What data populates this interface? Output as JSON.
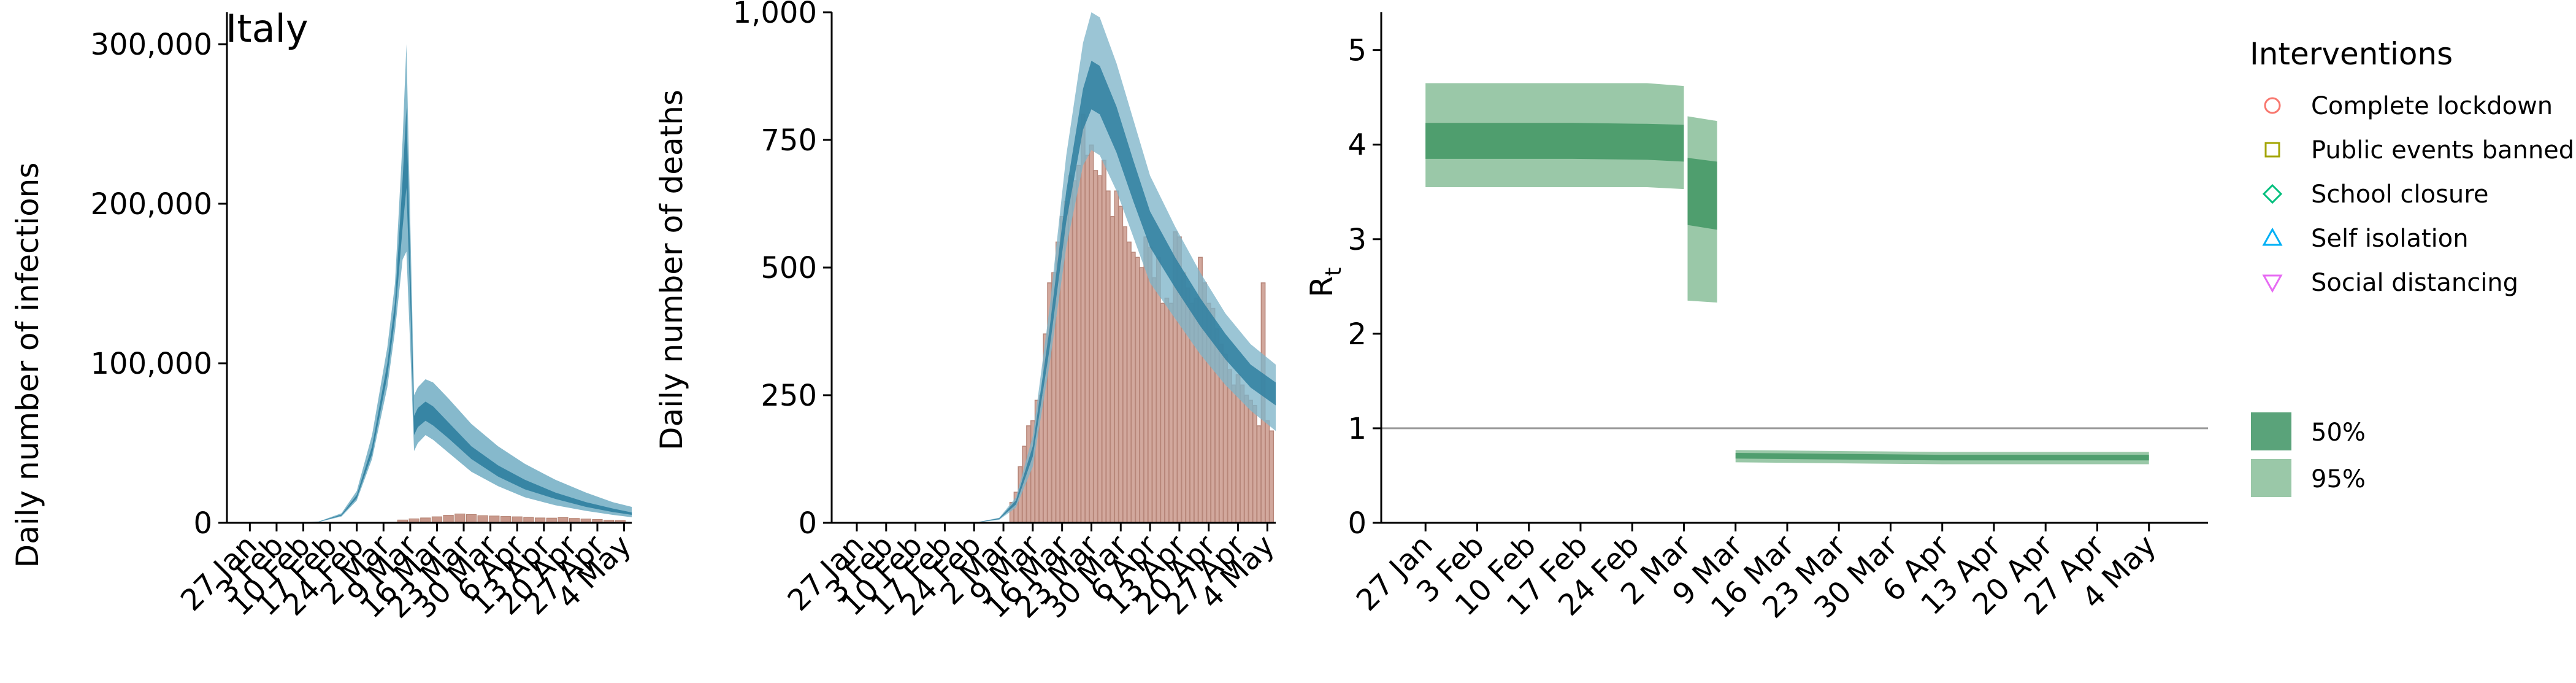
{
  "chart_data": [
    {
      "type": "area",
      "title": "Italy",
      "xlabel": "",
      "ylabel": "Daily number of infections",
      "ylim": [
        0,
        320000
      ],
      "yticks": [
        0,
        100000,
        200000,
        300000
      ],
      "ytick_labels": [
        "0",
        "100,000",
        "200,000",
        "300,000"
      ],
      "x_tick_labels": [
        "27 Jan",
        "3 Feb",
        "10 Feb",
        "17 Feb",
        "24 Feb",
        "2 Mar",
        "9 Mar",
        "16 Mar",
        "23 Mar",
        "30 Mar",
        "6 Apr",
        "13 Apr",
        "20 Apr",
        "27 Apr",
        "4 May"
      ],
      "x_tick_days": [
        0,
        7,
        14,
        21,
        28,
        35,
        42,
        49,
        56,
        63,
        70,
        77,
        84,
        91,
        98
      ],
      "xlim_days": [
        -6,
        100
      ],
      "series": [
        {
          "fill": "#7fb5c9",
          "x_days": [
            0,
            10,
            18,
            24,
            28,
            32,
            36,
            38,
            40,
            41,
            42,
            43,
            44,
            46,
            48,
            52,
            58,
            65,
            72,
            80,
            88,
            95,
            100
          ],
          "upper": [
            0,
            50,
            800,
            6000,
            20000,
            55000,
            110000,
            150000,
            240000,
            300000,
            190000,
            80000,
            85000,
            90000,
            88000,
            78000,
            62000,
            48000,
            37000,
            27000,
            19000,
            13000,
            10000
          ],
          "lower": [
            0,
            30,
            500,
            4000,
            14000,
            40000,
            85000,
            120000,
            165000,
            170000,
            110000,
            45000,
            50000,
            55000,
            52000,
            44000,
            32000,
            23000,
            16000,
            11000,
            7500,
            5000,
            3500
          ]
        },
        {
          "fill": "#2f7fa0",
          "x_days": [
            0,
            10,
            18,
            24,
            28,
            32,
            36,
            38,
            40,
            41,
            42,
            43,
            44,
            46,
            48,
            52,
            58,
            65,
            72,
            80,
            88,
            95,
            100
          ],
          "upper": [
            0,
            42,
            680,
            5200,
            17500,
            48000,
            100000,
            138000,
            215000,
            260000,
            165000,
            67000,
            72000,
            76000,
            73000,
            63000,
            48000,
            36000,
            27000,
            19000,
            13000,
            9000,
            6500
          ],
          "lower": [
            0,
            36,
            600,
            4500,
            15500,
            43000,
            92000,
            128000,
            185000,
            210000,
            140000,
            55000,
            60000,
            64000,
            61000,
            53000,
            40000,
            29000,
            21000,
            15000,
            10000,
            6800,
            5000
          ]
        }
      ],
      "observed": [
        {
          "day": 40,
          "value": 1800
        },
        {
          "day": 43,
          "value": 2500
        },
        {
          "day": 46,
          "value": 3100
        },
        {
          "day": 49,
          "value": 3800
        },
        {
          "day": 52,
          "value": 4800
        },
        {
          "day": 55,
          "value": 5600
        },
        {
          "day": 58,
          "value": 5200
        },
        {
          "day": 61,
          "value": 4500
        },
        {
          "day": 64,
          "value": 4300
        },
        {
          "day": 67,
          "value": 4000
        },
        {
          "day": 70,
          "value": 3800
        },
        {
          "day": 73,
          "value": 3400
        },
        {
          "day": 76,
          "value": 3100
        },
        {
          "day": 79,
          "value": 3000
        },
        {
          "day": 82,
          "value": 3300
        },
        {
          "day": 85,
          "value": 2800
        },
        {
          "day": 88,
          "value": 2400
        },
        {
          "day": 91,
          "value": 2100
        },
        {
          "day": 94,
          "value": 1700
        },
        {
          "day": 97,
          "value": 1500
        }
      ]
    },
    {
      "type": "bar",
      "title": "",
      "xlabel": "",
      "ylabel": "Daily number of deaths",
      "ylim": [
        0,
        1000
      ],
      "yticks": [
        0,
        250,
        500,
        750,
        1000
      ],
      "ytick_labels": [
        "0",
        "250",
        "500",
        "750",
        "1,000"
      ],
      "x_tick_labels": [
        "27 Jan",
        "3 Feb",
        "10 Feb",
        "17 Feb",
        "24 Feb",
        "2 Mar",
        "9 Mar",
        "16 Mar",
        "23 Mar",
        "30 Mar",
        "6 Apr",
        "13 Apr",
        "20 Apr",
        "27 Apr",
        "4 May"
      ],
      "x_tick_days": [
        0,
        7,
        14,
        21,
        28,
        35,
        42,
        49,
        56,
        63,
        70,
        77,
        84,
        91,
        98
      ],
      "xlim_days": [
        -6,
        100
      ],
      "deaths": [
        {
          "day": 37,
          "value": 40
        },
        {
          "day": 38,
          "value": 60
        },
        {
          "day": 39,
          "value": 110
        },
        {
          "day": 40,
          "value": 150
        },
        {
          "day": 41,
          "value": 190
        },
        {
          "day": 42,
          "value": 200
        },
        {
          "day": 43,
          "value": 240
        },
        {
          "day": 44,
          "value": 250
        },
        {
          "day": 45,
          "value": 370
        },
        {
          "day": 46,
          "value": 470
        },
        {
          "day": 47,
          "value": 490
        },
        {
          "day": 48,
          "value": 550
        },
        {
          "day": 49,
          "value": 600
        },
        {
          "day": 50,
          "value": 630
        },
        {
          "day": 51,
          "value": 680
        },
        {
          "day": 52,
          "value": 670
        },
        {
          "day": 53,
          "value": 700
        },
        {
          "day": 54,
          "value": 800
        },
        {
          "day": 55,
          "value": 720
        },
        {
          "day": 56,
          "value": 740
        },
        {
          "day": 57,
          "value": 690
        },
        {
          "day": 58,
          "value": 680
        },
        {
          "day": 59,
          "value": 710
        },
        {
          "day": 60,
          "value": 650
        },
        {
          "day": 61,
          "value": 600
        },
        {
          "day": 62,
          "value": 650
        },
        {
          "day": 63,
          "value": 620
        },
        {
          "day": 64,
          "value": 580
        },
        {
          "day": 65,
          "value": 550
        },
        {
          "day": 66,
          "value": 530
        },
        {
          "day": 67,
          "value": 520
        },
        {
          "day": 68,
          "value": 500
        },
        {
          "day": 69,
          "value": 560
        },
        {
          "day": 70,
          "value": 540
        },
        {
          "day": 71,
          "value": 480
        },
        {
          "day": 72,
          "value": 520
        },
        {
          "day": 73,
          "value": 430
        },
        {
          "day": 74,
          "value": 440
        },
        {
          "day": 75,
          "value": 430
        },
        {
          "day": 76,
          "value": 570
        },
        {
          "day": 77,
          "value": 560
        },
        {
          "day": 78,
          "value": 490
        },
        {
          "day": 79,
          "value": 460
        },
        {
          "day": 80,
          "value": 430
        },
        {
          "day": 81,
          "value": 440
        },
        {
          "day": 82,
          "value": 520
        },
        {
          "day": 83,
          "value": 470
        },
        {
          "day": 84,
          "value": 430
        },
        {
          "day": 85,
          "value": 420
        },
        {
          "day": 86,
          "value": 380
        },
        {
          "day": 87,
          "value": 350
        },
        {
          "day": 88,
          "value": 330
        },
        {
          "day": 89,
          "value": 300
        },
        {
          "day": 90,
          "value": 270
        },
        {
          "day": 91,
          "value": 290
        },
        {
          "day": 92,
          "value": 270
        },
        {
          "day": 93,
          "value": 250
        },
        {
          "day": 94,
          "value": 240
        },
        {
          "day": 95,
          "value": 230
        },
        {
          "day": 96,
          "value": 190
        },
        {
          "day": 97,
          "value": 470
        },
        {
          "day": 98,
          "value": 200
        },
        {
          "day": 99,
          "value": 180
        }
      ],
      "series": [
        {
          "fill": "#7fb5c9",
          "x_days": [
            28,
            34,
            38,
            42,
            46,
            50,
            54,
            56,
            58,
            62,
            66,
            70,
            76,
            82,
            88,
            94,
            100
          ],
          "upper": [
            0,
            10,
            50,
            170,
            420,
            720,
            940,
            1000,
            990,
            900,
            790,
            680,
            580,
            490,
            410,
            350,
            310
          ],
          "lower": [
            0,
            6,
            30,
            110,
            310,
            540,
            700,
            730,
            720,
            650,
            560,
            470,
            400,
            330,
            270,
            220,
            180
          ]
        },
        {
          "fill": "#2f7fa0",
          "x_days": [
            28,
            34,
            38,
            42,
            46,
            50,
            54,
            56,
            58,
            62,
            66,
            70,
            76,
            82,
            88,
            94,
            100
          ],
          "upper": [
            0,
            9,
            44,
            150,
            380,
            650,
            850,
            905,
            895,
            815,
            710,
            610,
            520,
            440,
            370,
            310,
            275
          ],
          "lower": [
            0,
            7,
            36,
            130,
            340,
            590,
            770,
            810,
            800,
            725,
            630,
            540,
            460,
            385,
            320,
            265,
            230
          ]
        }
      ]
    },
    {
      "type": "area",
      "title": "",
      "xlabel": "",
      "ylabel": "R",
      "ylabel_subscript": "t",
      "ylim": [
        0,
        5.4
      ],
      "yticks": [
        0,
        1,
        2,
        3,
        4,
        5
      ],
      "ytick_labels": [
        "0",
        "1",
        "2",
        "3",
        "4",
        "5"
      ],
      "x_tick_labels": [
        "27 Jan",
        "3 Feb",
        "10 Feb",
        "17 Feb",
        "24 Feb",
        "2 Mar",
        "9 Mar",
        "16 Mar",
        "23 Mar",
        "30 Mar",
        "6 Apr",
        "13 Apr",
        "20 Apr",
        "27 Apr",
        "4 May"
      ],
      "x_tick_days": [
        0,
        7,
        14,
        21,
        28,
        35,
        42,
        49,
        56,
        63,
        70,
        77,
        84,
        91,
        98
      ],
      "xlim_days": [
        -6,
        106
      ],
      "reference_line": 1,
      "segments": [
        {
          "x_days": [
            0,
            10,
            20,
            30,
            35
          ],
          "ci95_upper": [
            4.65,
            4.65,
            4.65,
            4.65,
            4.62
          ],
          "ci95_lower": [
            3.55,
            3.55,
            3.55,
            3.55,
            3.53
          ],
          "ci50_upper": [
            4.23,
            4.23,
            4.23,
            4.22,
            4.21
          ],
          "ci50_lower": [
            3.85,
            3.85,
            3.85,
            3.84,
            3.82
          ]
        },
        {
          "x_days": [
            35.5,
            39.5
          ],
          "ci95_upper": [
            4.3,
            4.25
          ],
          "ci95_lower": [
            2.35,
            2.33
          ],
          "ci50_upper": [
            3.86,
            3.82
          ],
          "ci50_lower": [
            3.15,
            3.1
          ]
        },
        {
          "x_days": [
            42,
            55,
            70,
            85,
            98
          ],
          "ci95_upper": [
            0.77,
            0.76,
            0.75,
            0.75,
            0.75
          ],
          "ci95_lower": [
            0.64,
            0.63,
            0.62,
            0.62,
            0.62
          ],
          "ci50_upper": [
            0.74,
            0.73,
            0.72,
            0.72,
            0.72
          ],
          "ci50_lower": [
            0.68,
            0.67,
            0.66,
            0.66,
            0.66
          ]
        }
      ],
      "legend": {
        "title": "Interventions",
        "placement": "right",
        "items": [
          {
            "label": "Complete lockdown",
            "shape": "circle",
            "color": "#f8766d"
          },
          {
            "label": "Public events banned",
            "shape": "square",
            "color": "#a3a500"
          },
          {
            "label": "School closure",
            "shape": "diamond",
            "color": "#00bf7d"
          },
          {
            "label": "Self isolation",
            "shape": "triangle-up",
            "color": "#00b0f6"
          },
          {
            "label": "Social distancing",
            "shape": "triangle-down",
            "color": "#e76bf3"
          }
        ],
        "ci_items": [
          {
            "label": "50%",
            "color": "#5aa37a"
          },
          {
            "label": "95%",
            "color": "#9ac8a8"
          }
        ]
      }
    }
  ]
}
